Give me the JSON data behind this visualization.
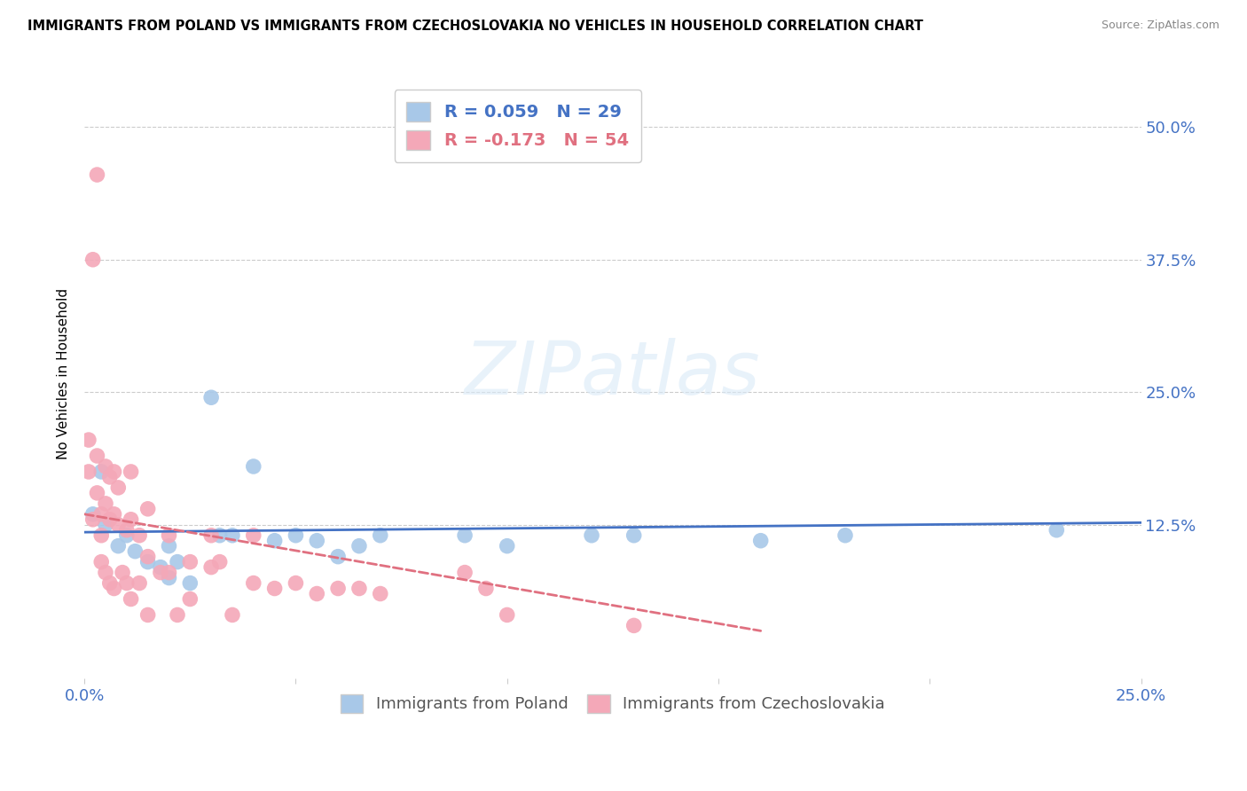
{
  "title": "IMMIGRANTS FROM POLAND VS IMMIGRANTS FROM CZECHOSLOVAKIA NO VEHICLES IN HOUSEHOLD CORRELATION CHART",
  "source": "Source: ZipAtlas.com",
  "ylabel": "No Vehicles in Household",
  "ytick_labels": [
    "50.0%",
    "37.5%",
    "25.0%",
    "12.5%"
  ],
  "ytick_values": [
    0.5,
    0.375,
    0.25,
    0.125
  ],
  "xlim": [
    0.0,
    0.25
  ],
  "ylim": [
    -0.02,
    0.555
  ],
  "poland_color": "#a8c8e8",
  "czechoslovakia_color": "#f4a8b8",
  "trendline_poland_color": "#4472c4",
  "trendline_czechoslovakia_color": "#e07080",
  "watermark_text": "ZIPatlas",
  "poland_scatter": [
    [
      0.002,
      0.135
    ],
    [
      0.004,
      0.175
    ],
    [
      0.005,
      0.125
    ],
    [
      0.008,
      0.105
    ],
    [
      0.01,
      0.115
    ],
    [
      0.012,
      0.1
    ],
    [
      0.015,
      0.09
    ],
    [
      0.018,
      0.085
    ],
    [
      0.02,
      0.105
    ],
    [
      0.02,
      0.075
    ],
    [
      0.022,
      0.09
    ],
    [
      0.025,
      0.07
    ],
    [
      0.03,
      0.245
    ],
    [
      0.032,
      0.115
    ],
    [
      0.035,
      0.115
    ],
    [
      0.04,
      0.18
    ],
    [
      0.045,
      0.11
    ],
    [
      0.05,
      0.115
    ],
    [
      0.055,
      0.11
    ],
    [
      0.06,
      0.095
    ],
    [
      0.065,
      0.105
    ],
    [
      0.07,
      0.115
    ],
    [
      0.09,
      0.115
    ],
    [
      0.1,
      0.105
    ],
    [
      0.12,
      0.115
    ],
    [
      0.13,
      0.115
    ],
    [
      0.16,
      0.11
    ],
    [
      0.18,
      0.115
    ],
    [
      0.23,
      0.12
    ]
  ],
  "czechoslovakia_scatter": [
    [
      0.001,
      0.205
    ],
    [
      0.001,
      0.175
    ],
    [
      0.002,
      0.375
    ],
    [
      0.002,
      0.13
    ],
    [
      0.003,
      0.455
    ],
    [
      0.003,
      0.19
    ],
    [
      0.003,
      0.155
    ],
    [
      0.004,
      0.135
    ],
    [
      0.004,
      0.115
    ],
    [
      0.004,
      0.09
    ],
    [
      0.005,
      0.18
    ],
    [
      0.005,
      0.145
    ],
    [
      0.005,
      0.08
    ],
    [
      0.006,
      0.17
    ],
    [
      0.006,
      0.13
    ],
    [
      0.006,
      0.07
    ],
    [
      0.007,
      0.175
    ],
    [
      0.007,
      0.135
    ],
    [
      0.007,
      0.065
    ],
    [
      0.008,
      0.16
    ],
    [
      0.008,
      0.125
    ],
    [
      0.009,
      0.08
    ],
    [
      0.01,
      0.12
    ],
    [
      0.01,
      0.07
    ],
    [
      0.011,
      0.175
    ],
    [
      0.011,
      0.13
    ],
    [
      0.011,
      0.055
    ],
    [
      0.013,
      0.115
    ],
    [
      0.013,
      0.07
    ],
    [
      0.015,
      0.14
    ],
    [
      0.015,
      0.095
    ],
    [
      0.015,
      0.04
    ],
    [
      0.018,
      0.08
    ],
    [
      0.02,
      0.115
    ],
    [
      0.02,
      0.08
    ],
    [
      0.022,
      0.04
    ],
    [
      0.025,
      0.09
    ],
    [
      0.025,
      0.055
    ],
    [
      0.03,
      0.115
    ],
    [
      0.03,
      0.085
    ],
    [
      0.032,
      0.09
    ],
    [
      0.035,
      0.04
    ],
    [
      0.04,
      0.115
    ],
    [
      0.04,
      0.07
    ],
    [
      0.045,
      0.065
    ],
    [
      0.05,
      0.07
    ],
    [
      0.055,
      0.06
    ],
    [
      0.06,
      0.065
    ],
    [
      0.065,
      0.065
    ],
    [
      0.07,
      0.06
    ],
    [
      0.09,
      0.08
    ],
    [
      0.095,
      0.065
    ],
    [
      0.1,
      0.04
    ],
    [
      0.13,
      0.03
    ]
  ],
  "poland_trendline_x": [
    0.0,
    0.25
  ],
  "poland_trendline_y": [
    0.118,
    0.127
  ],
  "czechoslovakia_trendline_x": [
    0.0,
    0.16
  ],
  "czechoslovakia_trendline_y": [
    0.135,
    0.025
  ]
}
